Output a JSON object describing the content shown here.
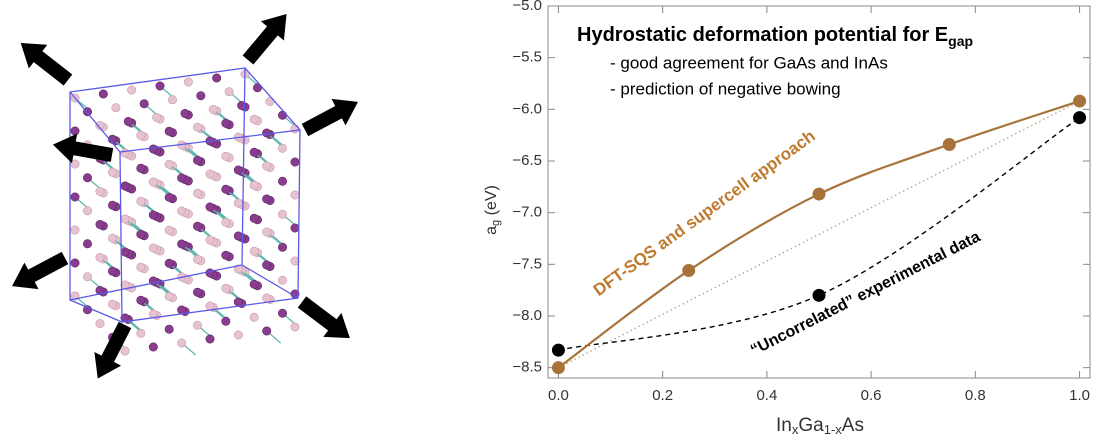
{
  "chart_data": {
    "type": "scatter",
    "title": "Hydrostatic deformation potential for E",
    "title_subscript": "gap",
    "bullets": [
      "- good agreement for GaAs and InAs",
      "- prediction of negative bowing"
    ],
    "annotations": [
      "DFT-SQS and supercell approach",
      "“Uncorrelated”  experimental data"
    ],
    "ylabel_parts": [
      "a",
      "g",
      " (eV)"
    ],
    "xlabel_parts": [
      "In",
      "x",
      "Ga",
      "1-x",
      "As"
    ],
    "xlim": [
      -0.02,
      1.02
    ],
    "ylim": [
      -8.6,
      -5.0
    ],
    "xticks": [
      {
        "value": 0,
        "label": "0.0"
      },
      0.2,
      0.4,
      0.6,
      0.8,
      {
        "value": 1,
        "label": "1.0"
      }
    ],
    "yticks": [
      {
        "value": -8.5,
        "label": "−8.5"
      },
      {
        "value": -8.0,
        "label": "−8.0"
      },
      {
        "value": -7.5,
        "label": "−7.5"
      },
      {
        "value": -7.0,
        "label": "−7.0"
      },
      {
        "value": -6.5,
        "label": "−6.5"
      },
      {
        "value": -6.0,
        "label": "−6.0"
      },
      {
        "value": -5.5,
        "label": "−5.5"
      },
      {
        "value": -5.0,
        "label": "−5.0"
      }
    ],
    "series": [
      {
        "color": "#a8733b",
        "line": "solid",
        "x": [
          0,
          0.25,
          0.5,
          0.75,
          1
        ],
        "values": [
          -8.5,
          -7.56,
          -6.82,
          -6.34,
          -5.92
        ]
      },
      {
        "color": "#000000",
        "line": "dashed",
        "x": [
          0,
          0.5,
          1
        ],
        "values": [
          -8.33,
          -7.8,
          -6.08
        ]
      },
      {
        "color": "#c9a27a",
        "line": "dotted",
        "markers": false,
        "x": [
          0,
          1
        ],
        "values": [
          -8.5,
          -5.92
        ]
      }
    ]
  }
}
